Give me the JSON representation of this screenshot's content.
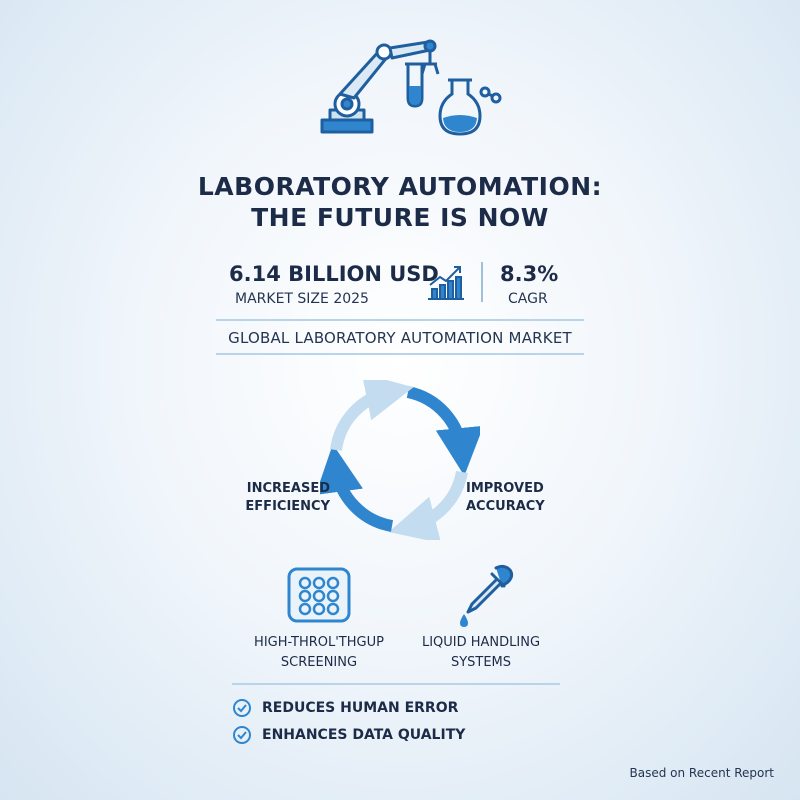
{
  "header": {
    "title_line1": "LABORATORY AUTOMATION:",
    "title_line2": "THE FUTURE IS NOW"
  },
  "stats": {
    "market_size": {
      "value": "6.14 BILLION USD",
      "label": "MARKET SIZE 2025"
    },
    "growth": {
      "value": "8.3%",
      "label": "CAGR"
    }
  },
  "market_label": "GLOBAL LABORATORY AUTOMATION MARKET",
  "cycle": {
    "left_line1": "INCREASED",
    "left_line2": "EFFICIENCY",
    "right_line1": "IMPROVED",
    "right_line2": "ACCURACY"
  },
  "features": [
    {
      "line1": "HIGH-THROL'THGUP",
      "line2": "SCREENING"
    },
    {
      "line1": "LIQUID HANDLING",
      "line2": "SYSTEMS"
    }
  ],
  "benefits": [
    {
      "label": "REDUCES HUMAN ERROR"
    },
    {
      "label": "ENHANCES DATA QUALITY"
    }
  ],
  "footnote": "Based on Recent Report",
  "colors": {
    "accent_blue": "#2f86cf",
    "light_blue": "#c4dcef",
    "dark_navy": "#1c2b47"
  }
}
